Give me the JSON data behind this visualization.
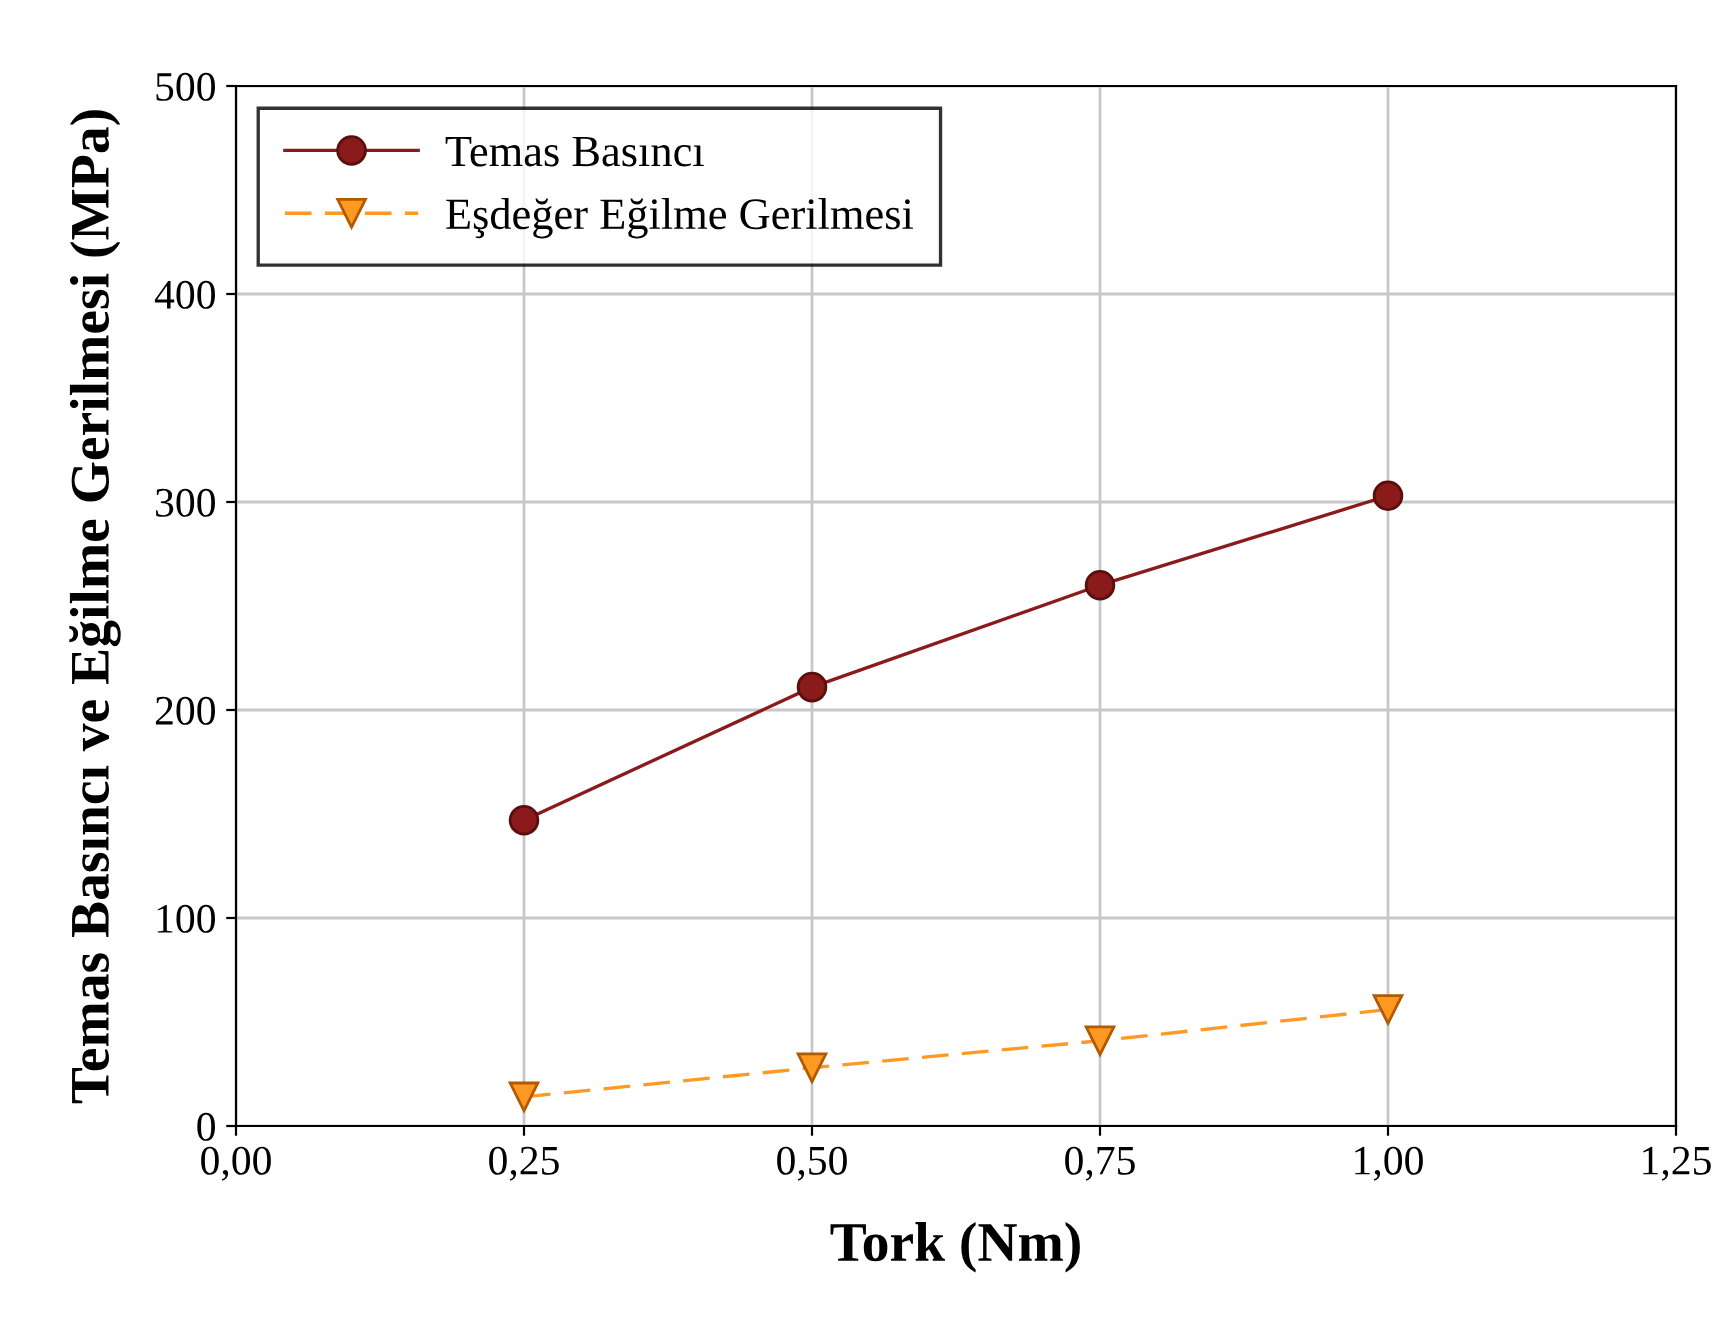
{
  "chart_data": {
    "type": "line",
    "xlabel": "Tork (Nm)",
    "ylabel": "Temas Basıncı ve Eğilme Gerilmesi (MPa)",
    "x": [
      0.25,
      0.5,
      0.75,
      1.0
    ],
    "series": [
      {
        "name": "Temas Basıncı",
        "color": "#8b1a1a",
        "values": [
          147,
          211,
          260,
          303
        ],
        "marker": "circle",
        "line_style": "solid"
      },
      {
        "name": "Eşdeğer Eğilme Gerilmesi",
        "color": "#ff9922",
        "values": [
          14,
          28,
          41,
          56
        ],
        "marker": "triangle",
        "line_style": "dashed"
      }
    ],
    "xlim": [
      0,
      1.25
    ],
    "xticks": [
      {
        "value": 0,
        "label": "0,00"
      },
      {
        "value": 0.25,
        "label": "0,25"
      },
      {
        "value": 0.5,
        "label": "0,50"
      },
      {
        "value": 0.75,
        "label": "0,75"
      },
      {
        "value": 1.0,
        "label": "1,00"
      },
      {
        "value": 1.25,
        "label": "1,25"
      }
    ],
    "ylim": [
      0,
      500
    ],
    "yticks": [
      0,
      100,
      200,
      300,
      400,
      500
    ],
    "grid": true,
    "legend": "top left"
  }
}
